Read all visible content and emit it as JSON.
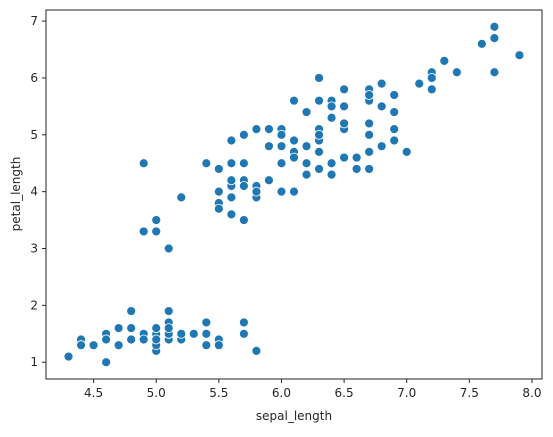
{
  "chart_data": {
    "type": "scatter",
    "xlabel": "sepal_length",
    "ylabel": "petal_length",
    "color": "#1f77b4",
    "x": [
      5.1,
      4.9,
      4.7,
      4.6,
      5.0,
      5.4,
      4.6,
      5.0,
      4.4,
      4.9,
      5.4,
      4.8,
      4.8,
      4.3,
      5.8,
      5.7,
      5.4,
      5.1,
      5.7,
      5.1,
      5.4,
      5.1,
      4.6,
      5.1,
      4.8,
      5.0,
      5.0,
      5.2,
      5.2,
      4.7,
      4.8,
      5.4,
      5.2,
      5.5,
      4.9,
      5.0,
      5.5,
      4.9,
      4.4,
      5.1,
      5.0,
      4.5,
      4.4,
      5.0,
      5.1,
      4.8,
      5.1,
      4.6,
      5.3,
      5.0,
      7.0,
      6.4,
      6.9,
      5.5,
      6.5,
      5.7,
      6.3,
      4.9,
      6.6,
      5.2,
      5.0,
      5.9,
      6.0,
      6.1,
      5.6,
      6.7,
      5.6,
      5.8,
      6.2,
      5.6,
      5.9,
      6.1,
      6.3,
      6.1,
      6.4,
      6.6,
      6.8,
      6.7,
      6.0,
      5.7,
      5.5,
      5.5,
      5.8,
      6.0,
      5.4,
      6.0,
      6.7,
      6.3,
      5.6,
      5.5,
      5.5,
      6.1,
      5.8,
      5.0,
      5.6,
      5.7,
      5.7,
      6.2,
      5.1,
      5.7,
      6.3,
      5.8,
      7.1,
      6.3,
      6.5,
      7.6,
      4.9,
      7.3,
      6.7,
      7.2,
      6.5,
      6.4,
      6.8,
      5.7,
      5.8,
      6.4,
      6.5,
      7.7,
      7.7,
      6.0,
      6.9,
      5.6,
      7.7,
      6.3,
      6.7,
      7.2,
      6.2,
      6.1,
      6.4,
      7.2,
      7.4,
      7.9,
      6.4,
      6.3,
      6.1,
      7.7,
      6.3,
      6.4,
      6.0,
      6.9,
      6.7,
      6.9,
      5.8,
      6.8,
      6.7,
      6.7,
      6.3,
      6.5,
      6.2,
      5.9
    ],
    "values": [
      1.4,
      1.4,
      1.3,
      1.5,
      1.4,
      1.7,
      1.4,
      1.5,
      1.4,
      1.5,
      1.5,
      1.6,
      1.4,
      1.1,
      1.2,
      1.5,
      1.3,
      1.4,
      1.7,
      1.5,
      1.7,
      1.5,
      1.0,
      1.7,
      1.9,
      1.6,
      1.6,
      1.5,
      1.4,
      1.6,
      1.6,
      1.5,
      1.5,
      1.4,
      1.5,
      1.2,
      1.3,
      1.4,
      1.3,
      1.5,
      1.3,
      1.3,
      1.3,
      1.6,
      1.9,
      1.4,
      1.6,
      1.4,
      1.5,
      1.4,
      4.7,
      4.5,
      4.9,
      4.0,
      4.6,
      4.5,
      4.7,
      3.3,
      4.6,
      3.9,
      3.5,
      4.2,
      4.0,
      4.7,
      3.6,
      4.4,
      4.5,
      4.1,
      4.5,
      3.9,
      4.8,
      4.0,
      4.9,
      4.7,
      4.3,
      4.4,
      4.8,
      5.0,
      4.5,
      3.5,
      3.8,
      3.7,
      3.9,
      5.1,
      4.5,
      4.5,
      4.7,
      4.4,
      4.1,
      4.0,
      4.4,
      4.6,
      4.0,
      3.3,
      4.2,
      4.2,
      4.2,
      4.3,
      3.0,
      4.1,
      6.0,
      5.1,
      5.9,
      5.6,
      5.8,
      6.6,
      4.5,
      6.3,
      5.8,
      6.1,
      5.1,
      5.3,
      5.5,
      5.0,
      5.1,
      5.3,
      5.5,
      6.7,
      6.9,
      5.0,
      5.7,
      4.9,
      6.7,
      4.9,
      5.7,
      6.0,
      4.8,
      4.9,
      5.6,
      5.8,
      6.1,
      6.4,
      5.6,
      5.1,
      5.6,
      6.1,
      5.6,
      5.5,
      4.8,
      5.4,
      5.6,
      5.1,
      5.1,
      5.9,
      5.7,
      5.2,
      5.0,
      5.2,
      5.4,
      5.1
    ],
    "xlim": [
      4.12,
      8.08
    ],
    "ylim": [
      0.705,
      7.195
    ],
    "xticks": [
      4.5,
      5.0,
      5.5,
      6.0,
      6.5,
      7.0,
      7.5,
      8.0
    ],
    "yticks": [
      1,
      2,
      3,
      4,
      5,
      6,
      7
    ]
  }
}
